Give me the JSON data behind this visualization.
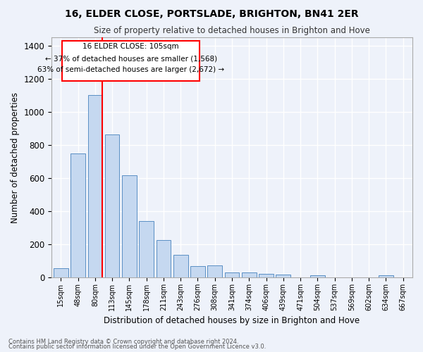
{
  "title1": "16, ELDER CLOSE, PORTSLADE, BRIGHTON, BN41 2ER",
  "title2": "Size of property relative to detached houses in Brighton and Hove",
  "xlabel": "Distribution of detached houses by size in Brighton and Hove",
  "ylabel": "Number of detached properties",
  "footnote1": "Contains HM Land Registry data © Crown copyright and database right 2024.",
  "footnote2": "Contains public sector information licensed under the Open Government Licence v3.0.",
  "bar_labels": [
    "15sqm",
    "48sqm",
    "80sqm",
    "113sqm",
    "145sqm",
    "178sqm",
    "211sqm",
    "243sqm",
    "276sqm",
    "308sqm",
    "341sqm",
    "374sqm",
    "406sqm",
    "439sqm",
    "471sqm",
    "504sqm",
    "537sqm",
    "569sqm",
    "602sqm",
    "634sqm",
    "667sqm"
  ],
  "bar_values": [
    55,
    750,
    1100,
    865,
    615,
    340,
    228,
    138,
    68,
    75,
    32,
    32,
    22,
    18,
    0,
    15,
    0,
    0,
    0,
    15,
    0
  ],
  "bar_color": "#c5d8f0",
  "bar_edge_color": "#5a8fc4",
  "annotation_text_line1": "16 ELDER CLOSE: 105sqm",
  "annotation_text_line2": "← 37% of detached houses are smaller (1,568)",
  "annotation_text_line3": "63% of semi-detached houses are larger (2,672) →",
  "red_line_bar_index": 2,
  "ylim": [
    0,
    1450
  ],
  "yticks": [
    0,
    200,
    400,
    600,
    800,
    1000,
    1200,
    1400
  ],
  "bg_color": "#eef2fa",
  "grid_color": "#ffffff"
}
